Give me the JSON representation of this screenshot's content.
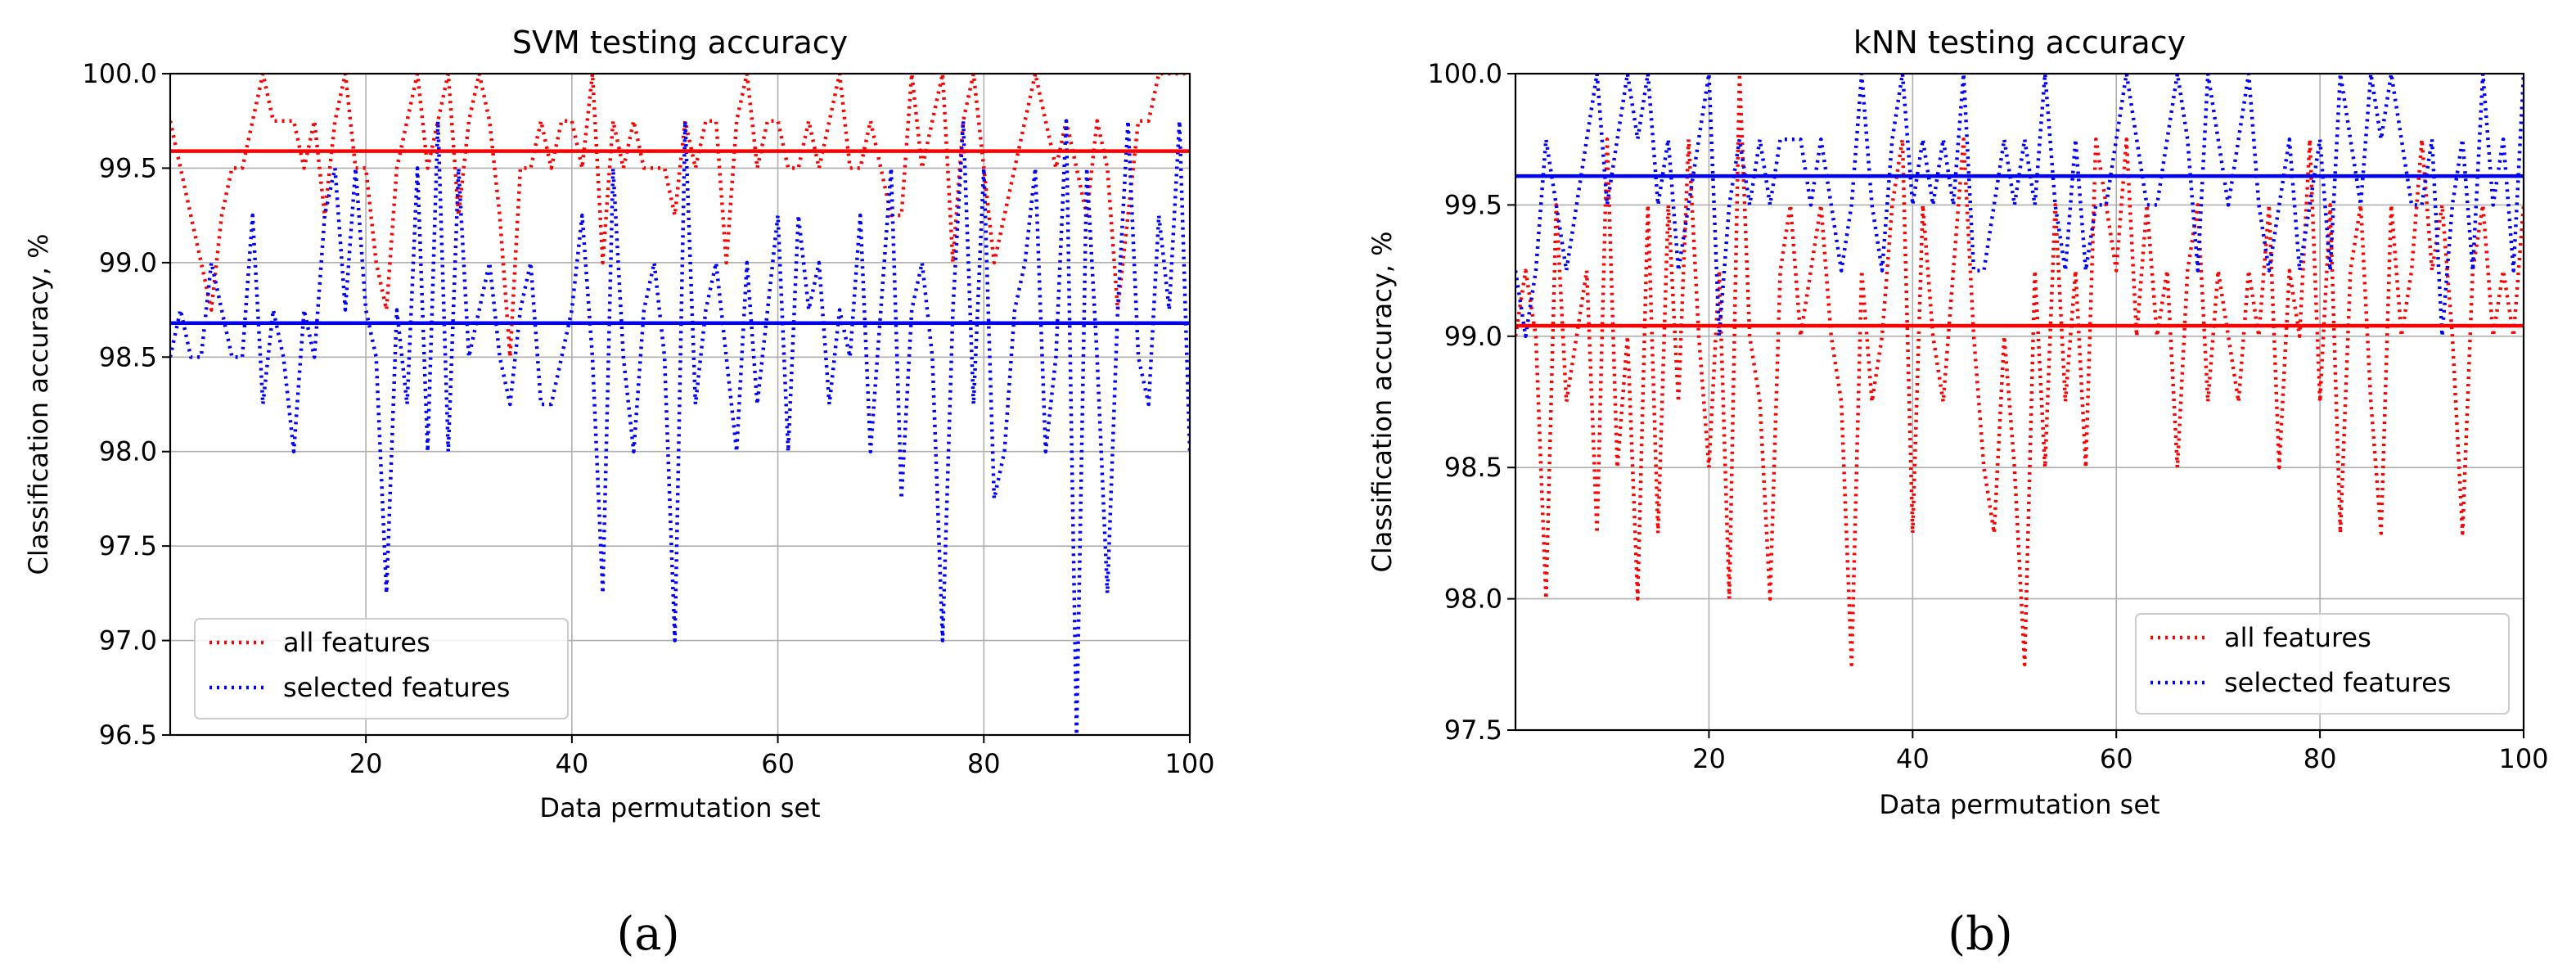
{
  "chart_data": [
    {
      "panel": "a",
      "panel_caption": "(a)",
      "type": "line",
      "title": "SVM testing accuracy",
      "xlabel": "Data permutation set",
      "ylabel": "Classification accuracy, %",
      "xlim": [
        1,
        100
      ],
      "ylim": [
        96.5,
        100.0
      ],
      "xticks": [
        "20",
        "40",
        "60",
        "80",
        "100"
      ],
      "yticks": [
        "96.5",
        "97.0",
        "97.5",
        "98.0",
        "98.5",
        "99.0",
        "99.5",
        "100.0"
      ],
      "grid": true,
      "legend_position": "lower-left",
      "series": [
        {
          "name": "all features",
          "color": "#ff0000",
          "style": "dotted",
          "mean": 99.59,
          "values": [
            99.75,
            99.5,
            99.25,
            99.0,
            98.75,
            99.25,
            99.5,
            99.5,
            99.75,
            100.0,
            99.75,
            99.75,
            99.75,
            99.5,
            99.75,
            99.25,
            99.75,
            100.0,
            99.5,
            99.5,
            99.0,
            98.75,
            99.5,
            99.75,
            100.0,
            99.5,
            99.75,
            100.0,
            99.25,
            99.75,
            100.0,
            99.75,
            99.25,
            98.5,
            99.5,
            99.5,
            99.75,
            99.5,
            99.75,
            99.75,
            99.5,
            100.0,
            99.0,
            99.75,
            99.5,
            99.75,
            99.5,
            99.5,
            99.5,
            99.25,
            99.75,
            99.5,
            99.75,
            99.75,
            99.0,
            99.75,
            100.0,
            99.5,
            99.75,
            99.75,
            99.5,
            99.5,
            99.75,
            99.5,
            99.75,
            100.0,
            99.5,
            99.5,
            99.75,
            99.5,
            99.25,
            99.25,
            100.0,
            99.5,
            99.75,
            100.0,
            99.0,
            99.75,
            100.0,
            99.5,
            99.0,
            99.25,
            99.5,
            99.75,
            100.0,
            99.75,
            99.5,
            99.75,
            99.5,
            99.25,
            99.75,
            99.5,
            98.75,
            99.25,
            99.75,
            99.75,
            100.0,
            100.0,
            100.0,
            100.0
          ]
        },
        {
          "name": "selected features",
          "color": "#0000ff",
          "style": "dotted",
          "mean": 98.68,
          "values": [
            98.5,
            98.75,
            98.5,
            98.5,
            99.0,
            98.75,
            98.5,
            98.5,
            99.25,
            98.25,
            98.75,
            98.5,
            98.0,
            98.75,
            98.5,
            99.25,
            99.5,
            98.75,
            99.5,
            98.75,
            98.5,
            97.25,
            98.75,
            98.25,
            99.5,
            98.0,
            99.75,
            98.0,
            99.5,
            98.5,
            98.75,
            99.0,
            98.5,
            98.25,
            98.75,
            99.0,
            98.25,
            98.25,
            98.5,
            98.75,
            99.25,
            98.5,
            97.25,
            99.5,
            98.5,
            98.0,
            98.75,
            99.0,
            98.5,
            97.0,
            99.75,
            98.25,
            98.75,
            99.0,
            98.5,
            98.0,
            99.0,
            98.25,
            98.75,
            99.25,
            98.0,
            99.25,
            98.75,
            99.0,
            98.25,
            98.75,
            98.5,
            99.25,
            98.0,
            98.75,
            99.5,
            97.75,
            98.75,
            99.0,
            98.5,
            97.0,
            98.75,
            99.75,
            98.25,
            99.5,
            97.75,
            98.0,
            98.75,
            99.0,
            99.5,
            98.0,
            98.5,
            99.75,
            96.5,
            99.5,
            98.5,
            97.25,
            98.75,
            99.75,
            98.5,
            98.25,
            99.25,
            98.75,
            99.75,
            98.0
          ]
        }
      ]
    },
    {
      "panel": "b",
      "panel_caption": "(b)",
      "type": "line",
      "title": "kNN testing accuracy",
      "xlabel": "Data permutation set",
      "ylabel": "Classification accuracy, %",
      "xlim": [
        1,
        100
      ],
      "ylim": [
        97.5,
        100.0
      ],
      "xticks": [
        "20",
        "40",
        "60",
        "80",
        "100"
      ],
      "yticks": [
        "97.5",
        "98.0",
        "98.5",
        "99.0",
        "99.5",
        "100.0"
      ],
      "grid": true,
      "legend_position": "lower-right",
      "series": [
        {
          "name": "all features",
          "color": "#ff0000",
          "style": "dotted",
          "mean": 99.04,
          "values": [
            99.0,
            99.25,
            99.0,
            98.0,
            99.5,
            98.75,
            99.0,
            99.25,
            98.25,
            99.75,
            98.5,
            99.0,
            98.0,
            99.5,
            98.25,
            99.5,
            98.75,
            99.75,
            99.0,
            98.5,
            99.25,
            98.0,
            100.0,
            99.0,
            98.75,
            98.0,
            99.25,
            99.5,
            99.0,
            99.25,
            99.5,
            99.0,
            98.75,
            97.75,
            99.25,
            98.75,
            99.0,
            99.5,
            99.75,
            98.25,
            99.5,
            99.0,
            98.75,
            99.25,
            99.75,
            99.0,
            98.5,
            98.25,
            99.0,
            98.5,
            97.75,
            99.25,
            98.5,
            99.5,
            98.75,
            99.25,
            98.5,
            99.75,
            99.5,
            99.25,
            99.75,
            99.0,
            99.5,
            99.0,
            99.25,
            98.5,
            99.25,
            99.5,
            98.75,
            99.25,
            99.0,
            98.75,
            99.25,
            99.0,
            99.5,
            98.5,
            99.25,
            99.0,
            99.75,
            98.75,
            99.5,
            98.25,
            99.25,
            99.5,
            98.75,
            98.25,
            99.5,
            99.0,
            99.25,
            99.75,
            99.25,
            99.5,
            99.0,
            98.25,
            99.25,
            99.5,
            99.0,
            99.25,
            99.0,
            99.5
          ]
        },
        {
          "name": "selected features",
          "color": "#0000ff",
          "style": "dotted",
          "mean": 99.61,
          "values": [
            99.25,
            99.0,
            99.25,
            99.75,
            99.5,
            99.25,
            99.5,
            99.75,
            100.0,
            99.5,
            99.75,
            100.0,
            99.75,
            100.0,
            99.5,
            99.75,
            99.25,
            99.5,
            99.75,
            100.0,
            99.0,
            99.5,
            99.75,
            99.5,
            99.75,
            99.5,
            99.75,
            99.75,
            99.75,
            99.5,
            99.75,
            99.5,
            99.25,
            99.5,
            100.0,
            99.5,
            99.25,
            99.75,
            100.0,
            99.5,
            99.75,
            99.5,
            99.75,
            99.5,
            100.0,
            99.25,
            99.25,
            99.5,
            99.75,
            99.5,
            99.75,
            99.5,
            100.0,
            99.5,
            99.25,
            99.75,
            99.25,
            99.5,
            99.5,
            99.75,
            100.0,
            99.75,
            99.5,
            99.5,
            99.75,
            100.0,
            99.75,
            99.25,
            100.0,
            99.75,
            99.5,
            99.75,
            100.0,
            99.5,
            99.25,
            99.5,
            99.75,
            99.25,
            99.5,
            99.75,
            99.25,
            100.0,
            99.75,
            99.5,
            100.0,
            99.75,
            100.0,
            99.75,
            99.5,
            99.5,
            99.75,
            99.0,
            99.5,
            99.75,
            99.25,
            100.0,
            99.5,
            99.75,
            99.25,
            100.0
          ]
        }
      ]
    }
  ]
}
